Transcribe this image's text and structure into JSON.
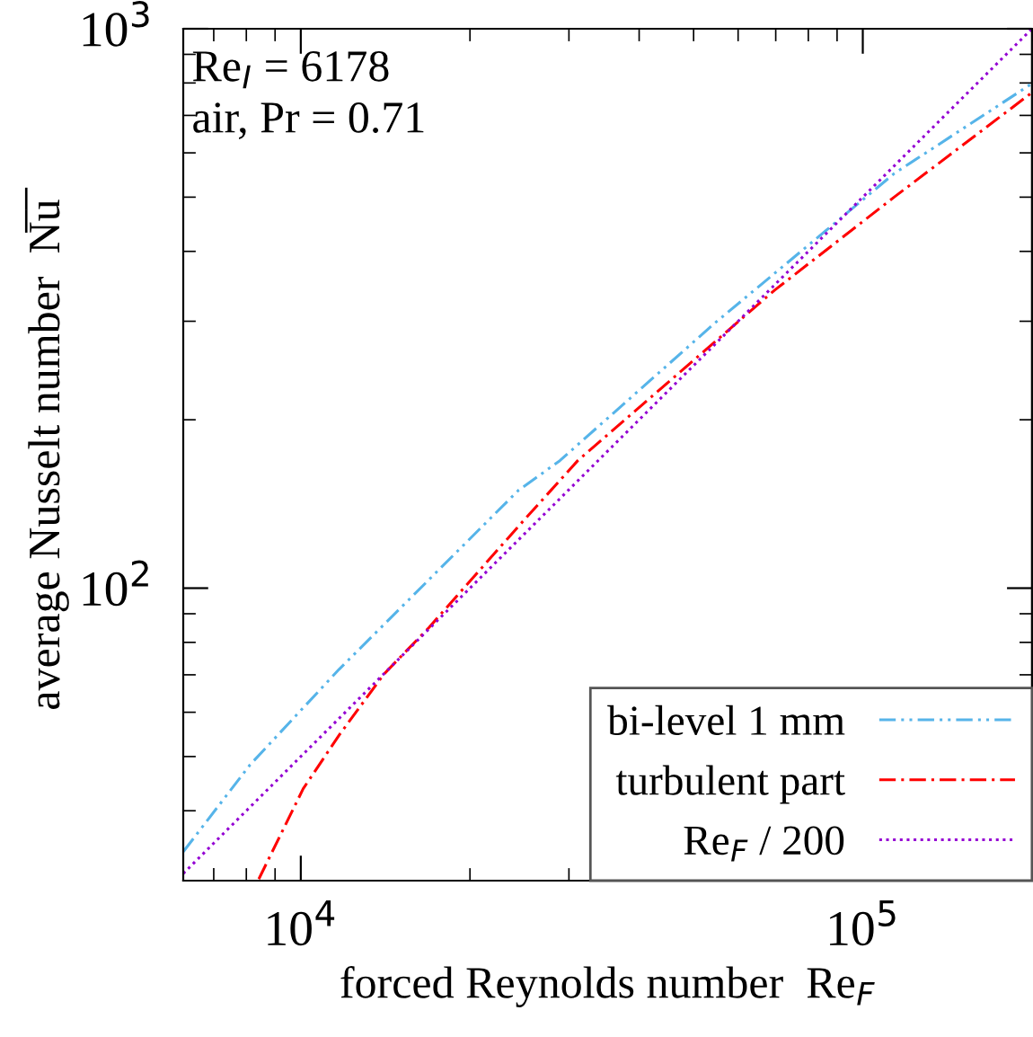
{
  "chart_data": {
    "type": "line",
    "xlabel": "forced Reynolds number  Re$_{F}$",
    "ylabel": "average Nusselt number  N̅u̅",
    "log": "xy",
    "xlim": [
      6178,
      200000
    ],
    "ylim": [
      30,
      1000
    ],
    "xticks": [
      {
        "value": 10000,
        "label": "10$^{4}$"
      },
      {
        "value": 100000,
        "label": "10$^{5}$"
      }
    ],
    "yticks": [
      {
        "value": 100,
        "label": "10$^{2}$"
      },
      {
        "value": 1000,
        "label": "10$^{3}$"
      }
    ],
    "grid": false,
    "legend": "bottom right",
    "annotations": [
      "Re$_{I}$ = 6178",
      "air, Pr = 0.71"
    ],
    "series": [
      {
        "name": "bi-level 1 mm",
        "color": "#56b4e9",
        "line_style": "dashdotdot",
        "x": [
          6180,
          8120,
          11700,
          24400,
          28900,
          54600,
          78800,
          113700,
          200000
        ],
        "values": [
          33.8,
          48.3,
          71.6,
          149.6,
          169,
          298,
          405,
          551,
          798
        ]
      },
      {
        "name": "turbulent part",
        "color": "#ff0000",
        "line_style": "dashdot",
        "x": [
          8420,
          10100,
          11700,
          14060,
          16900,
          24400,
          31100,
          69700,
          113700,
          200000
        ],
        "values": [
          30.2,
          43.8,
          54.6,
          70.2,
          85,
          129,
          169,
          341,
          500,
          769
        ]
      },
      {
        "name": "Re$_{F}$ / 200",
        "color": "#9400d3",
        "line_style": "dotted",
        "x": [
          6178,
          200000
        ],
        "values": [
          30.89,
          1000
        ]
      }
    ]
  }
}
